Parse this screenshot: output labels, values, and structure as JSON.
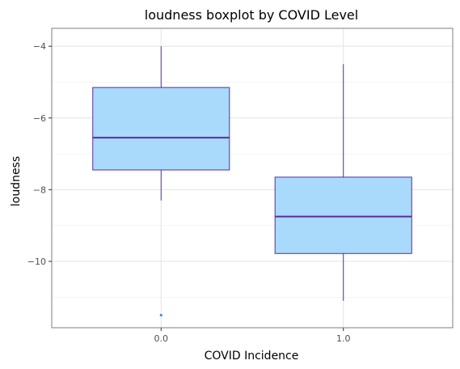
{
  "chart_data": {
    "type": "boxplot",
    "title": "loudness boxplot by COVID Level",
    "xlabel": "COVID Incidence",
    "ylabel": "loudness",
    "categories": [
      "0.0",
      "1.0"
    ],
    "boxes": [
      {
        "category": "0.0",
        "whisker_low": -8.3,
        "q1": -7.45,
        "median": -6.55,
        "q3": -5.15,
        "whisker_high": -4.0,
        "outliers": [
          -11.5
        ]
      },
      {
        "category": "1.0",
        "whisker_low": -11.1,
        "q1": -9.78,
        "median": -8.75,
        "q3": -7.65,
        "whisker_high": -4.5,
        "outliers": []
      }
    ],
    "yticks": [
      -10,
      -8,
      -6,
      -4
    ],
    "ytick_labels": [
      "−10",
      "−8",
      "−6",
      "−4"
    ],
    "ylim": [
      -11.85,
      -3.5
    ],
    "grid": true,
    "colors": {
      "box_fill": "#a9d9fb",
      "box_stroke": "#5a2ca0",
      "median": "#5a2ca0",
      "outlier": "#4a8fd0",
      "panel_border": "#7f7f7f",
      "grid_major": "#e3e3e3",
      "grid_minor": "#f2f2f2"
    }
  }
}
